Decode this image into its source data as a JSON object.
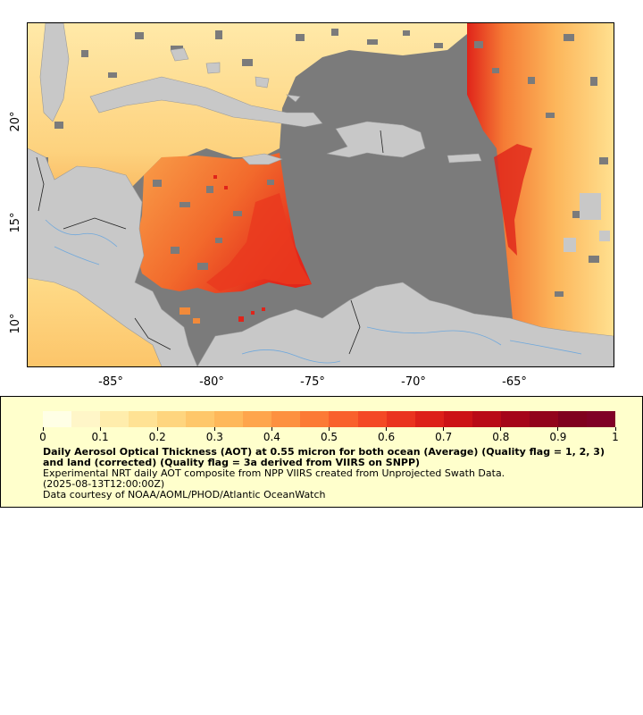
{
  "map": {
    "x_ticks": [
      "-85°",
      "-80°",
      "-75°",
      "-70°",
      "-65°"
    ],
    "y_ticks": [
      "20°",
      "15°",
      "10°"
    ],
    "colors": {
      "background_no_data": "#7b7b7b",
      "land": "#c8c8c8",
      "rivers": "#6fa8dc",
      "borders": "#222222",
      "low": "#ffeaa0",
      "mid": "#f7a23b",
      "high": "#e21e12"
    }
  },
  "legend": {
    "colorbar_labels": [
      "0",
      "0.1",
      "0.2",
      "0.3",
      "0.4",
      "0.5",
      "0.6",
      "0.7",
      "0.8",
      "0.9",
      "1"
    ],
    "colorbar_colors": [
      "#ffffe6",
      "#fff6c8",
      "#ffedac",
      "#ffe294",
      "#fed57e",
      "#fec76a",
      "#feb85a",
      "#fea54c",
      "#fd9140",
      "#fc7a35",
      "#f9612c",
      "#f44925",
      "#ea331f",
      "#dd2019",
      "#cc1216",
      "#b90a17",
      "#a50519",
      "#92031b",
      "#80001e",
      "#800026"
    ],
    "title": "Daily Aerosol Optical Thickness (AOT) at 0.55 micron for both ocean (Average) (Quality flag = 1, 2, 3) and land (corrected) (Quality flag = 3a derived from VIIRS on SNPP)",
    "description": "Experimental NRT daily AOT composite from NPP VIIRS created from Unprojected Swath Data.",
    "timestamp": "(2025-08-13T12:00:00Z)",
    "credit": "Data courtesy of NOAA/AOML/PHOD/Atlantic OceanWatch"
  }
}
